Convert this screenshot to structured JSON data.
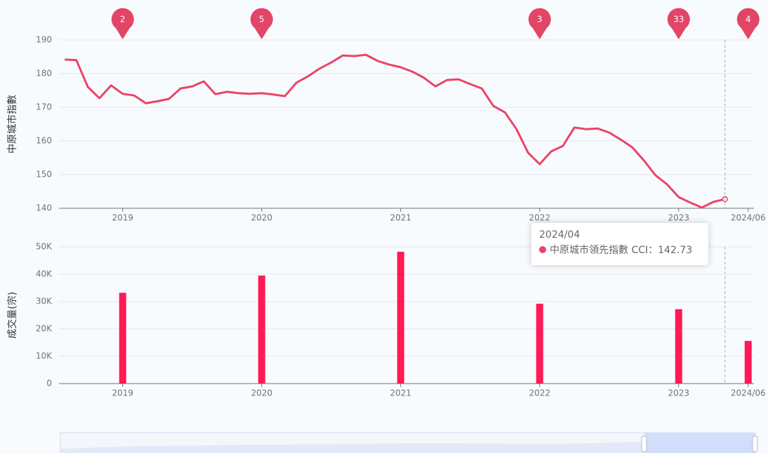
{
  "chart_data": [
    {
      "type": "line",
      "y_label": "中原城市指數",
      "color": "#ea4468",
      "pin_color": "#e34566",
      "categories": [
        null,
        null,
        null,
        null,
        null,
        "2019",
        null,
        null,
        null,
        null,
        null,
        null,
        null,
        null,
        null,
        null,
        null,
        "2020",
        null,
        null,
        null,
        null,
        null,
        null,
        null,
        null,
        null,
        null,
        null,
        "2021",
        null,
        null,
        null,
        null,
        null,
        null,
        null,
        null,
        null,
        null,
        null,
        "2022",
        null,
        null,
        null,
        null,
        null,
        null,
        null,
        null,
        null,
        null,
        null,
        "2023",
        null,
        null,
        null,
        null,
        null,
        "2024/06"
      ],
      "values": [
        184.2,
        184.0,
        176.0,
        172.7,
        176.5,
        174.0,
        173.5,
        171.2,
        171.8,
        172.5,
        175.6,
        176.2,
        177.7,
        173.9,
        174.6,
        174.2,
        174.0,
        174.2,
        173.8,
        173.3,
        177.3,
        179.2,
        181.5,
        183.3,
        185.4,
        185.2,
        185.6,
        183.8,
        182.7,
        181.9,
        180.6,
        178.8,
        176.2,
        178.1,
        178.3,
        176.9,
        175.6,
        170.4,
        168.5,
        163.5,
        156.5,
        153.1,
        156.9,
        158.5,
        164.0,
        163.5,
        163.7,
        162.5,
        160.4,
        158.1,
        154.2,
        149.8,
        147.1,
        143.3,
        141.7,
        140.2,
        141.9,
        142.73,
        null,
        null
      ],
      "pins": [
        null,
        null,
        null,
        null,
        null,
        2,
        null,
        null,
        null,
        null,
        null,
        null,
        null,
        null,
        null,
        null,
        null,
        5,
        null,
        null,
        null,
        null,
        null,
        null,
        null,
        null,
        null,
        null,
        null,
        null,
        null,
        null,
        null,
        null,
        null,
        null,
        null,
        null,
        null,
        null,
        null,
        3,
        null,
        null,
        null,
        null,
        null,
        null,
        null,
        null,
        null,
        null,
        null,
        33,
        null,
        null,
        null,
        null,
        null,
        4
      ],
      "ylim": [
        140,
        190
      ],
      "yticks": [
        140,
        150,
        160,
        170,
        180,
        190
      ],
      "grid": true,
      "tooltip": {
        "title": "2024/04",
        "text": "中原城市領先指數 CCI：142.73"
      }
    },
    {
      "type": "bar",
      "y_label": "成交量(宗)",
      "color": "#ff1a55",
      "categories": [
        null,
        null,
        null,
        null,
        null,
        "2019",
        null,
        null,
        null,
        null,
        null,
        null,
        null,
        null,
        null,
        null,
        null,
        "2020",
        null,
        null,
        null,
        null,
        null,
        null,
        null,
        null,
        null,
        null,
        null,
        "2021",
        null,
        null,
        null,
        null,
        null,
        null,
        null,
        null,
        null,
        null,
        null,
        "2022",
        null,
        null,
        null,
        null,
        null,
        null,
        null,
        null,
        null,
        null,
        null,
        "2023",
        null,
        null,
        null,
        null,
        null,
        "2024/06"
      ],
      "values": [
        null,
        null,
        null,
        null,
        null,
        33200,
        null,
        null,
        null,
        null,
        null,
        null,
        null,
        null,
        null,
        null,
        null,
        39500,
        null,
        null,
        null,
        null,
        null,
        null,
        null,
        null,
        null,
        null,
        null,
        48200,
        null,
        null,
        null,
        null,
        null,
        null,
        null,
        null,
        null,
        null,
        null,
        29200,
        null,
        null,
        null,
        null,
        null,
        null,
        null,
        null,
        null,
        null,
        null,
        27200,
        null,
        null,
        null,
        null,
        null,
        15600
      ],
      "ylim": [
        0,
        50000
      ],
      "yticks": [
        0,
        {
          "value": 10000,
          "label": "10K"
        },
        {
          "value": 20000,
          "label": "20K"
        },
        {
          "value": 30000,
          "label": "30K"
        },
        {
          "value": 40000,
          "label": "40K"
        },
        {
          "value": 50000,
          "label": "50K"
        }
      ],
      "grid": true
    }
  ]
}
